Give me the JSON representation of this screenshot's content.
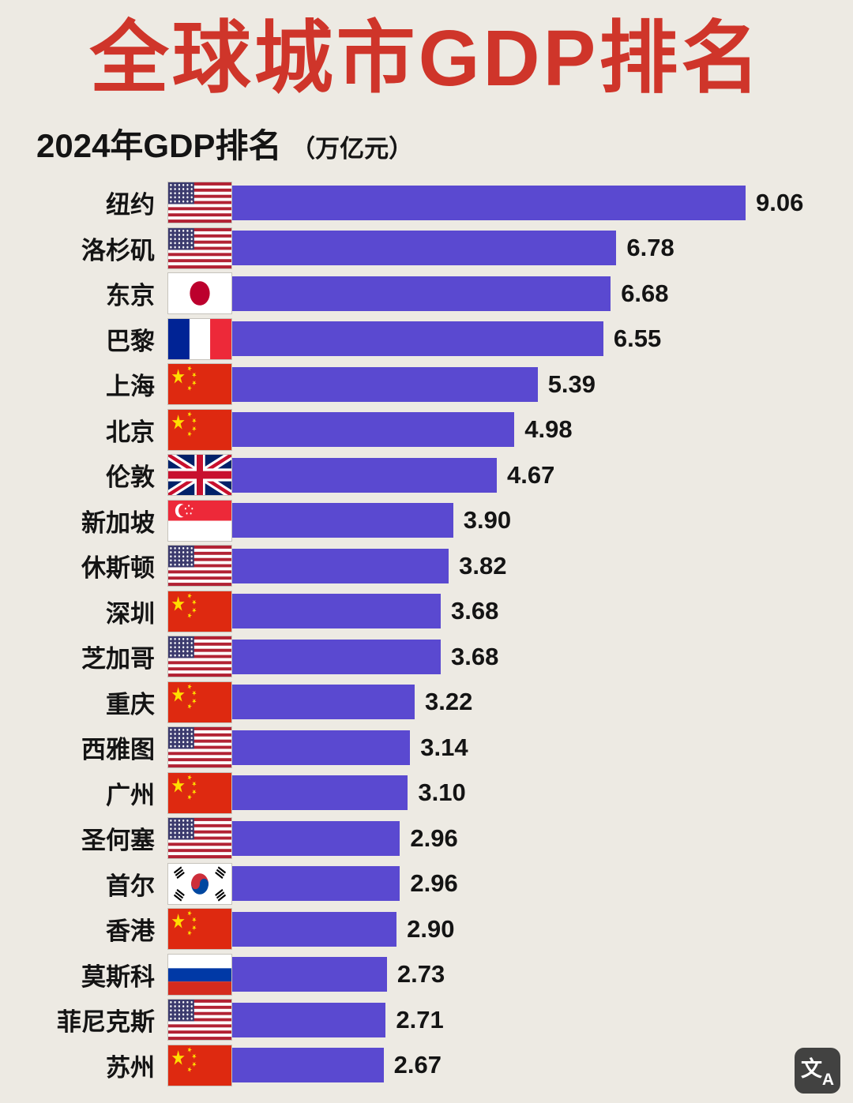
{
  "title": "全球城市GDP排名",
  "subtitle": "2024年GDP排名",
  "subtitle_unit": "（万亿元）",
  "watermark": {
    "top": "文",
    "bottom": "A"
  },
  "chart_data": {
    "type": "bar",
    "orientation": "horizontal",
    "title": "全球城市GDP排名",
    "subtitle": "2024年GDP排名（万亿元）",
    "unit": "万亿元",
    "xlim": [
      0,
      9.06
    ],
    "grid": false,
    "legend": false,
    "bar_color": "#5A49D0",
    "title_color": "#CF352A",
    "background_color": "#EDEAE3",
    "categories": [
      "纽约",
      "洛杉矶",
      "东京",
      "巴黎",
      "上海",
      "北京",
      "伦敦",
      "新加坡",
      "休斯顿",
      "深圳",
      "芝加哥",
      "重庆",
      "西雅图",
      "广州",
      "圣何塞",
      "首尔",
      "香港",
      "莫斯科",
      "菲尼克斯",
      "苏州"
    ],
    "values": [
      "9.06",
      "6.78",
      "6.68",
      "6.55",
      "5.39",
      "4.98",
      "4.67",
      "3.90",
      "3.82",
      "3.68",
      "3.68",
      "3.22",
      "3.14",
      "3.10",
      "2.96",
      "2.96",
      "2.90",
      "2.73",
      "2.71",
      "2.67"
    ],
    "flags": [
      "us",
      "us",
      "jp",
      "fr",
      "cn",
      "cn",
      "gb",
      "sg",
      "us",
      "cn",
      "us",
      "cn",
      "us",
      "cn",
      "us",
      "kr",
      "cn",
      "ru",
      "us",
      "cn"
    ]
  }
}
